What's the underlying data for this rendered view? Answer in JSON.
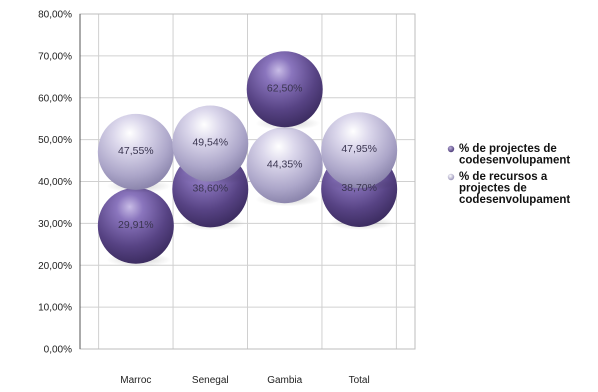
{
  "chart_data": {
    "type": "scatter",
    "title": "",
    "xlabel": "",
    "ylabel": "",
    "categories": [
      "Marroc",
      "Senegal",
      "Gambia",
      "Total"
    ],
    "ylim": [
      0,
      80
    ],
    "y_ticks": [
      "0,00%",
      "10,00%",
      "20,00%",
      "30,00%",
      "40,00%",
      "50,00%",
      "60,00%",
      "70,00%",
      "80,00%"
    ],
    "grid": true,
    "legend_position": "right",
    "series": [
      {
        "name": "% de projectes de codesenvolupament",
        "values": [
          29.91,
          38.6,
          62.5,
          38.7
        ],
        "labels": [
          "29,91%",
          "38,60%",
          "62,50%",
          "38,70%"
        ],
        "color": "#5e4a8e"
      },
      {
        "name": "% de recursos a projectes de codesenvolupament",
        "values": [
          47.55,
          49.54,
          44.35,
          47.95
        ],
        "labels": [
          "47,55%",
          "49,54%",
          "44,35%",
          "47,95%"
        ],
        "color": "#b3aed0"
      }
    ],
    "legend_lines": [
      [
        "% de projectes de",
        "codesenvolupament"
      ],
      [
        "% de recursos a",
        "projectes de",
        "codesenvolupament"
      ]
    ]
  }
}
